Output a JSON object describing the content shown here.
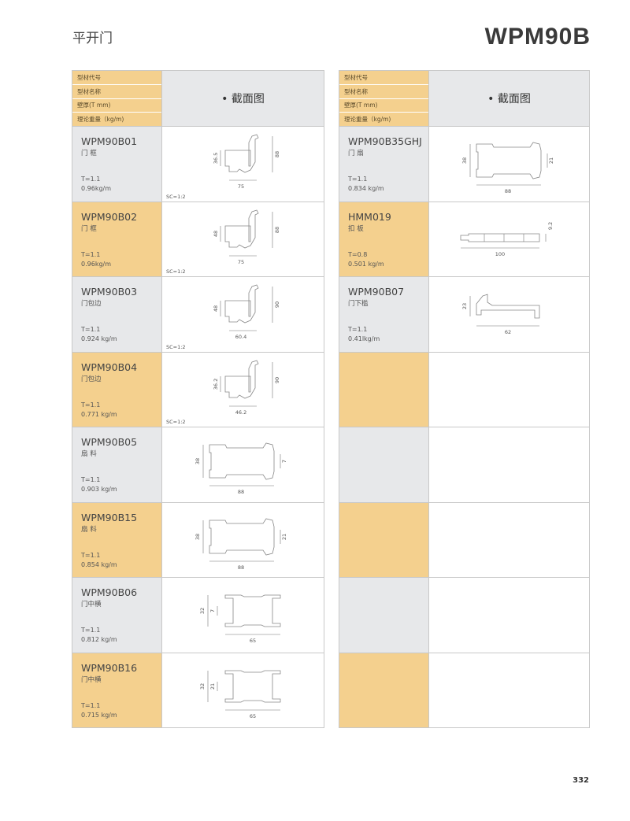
{
  "page": {
    "category": "平开门",
    "series_code": "WPM90B",
    "page_number": "332"
  },
  "header": {
    "labels": [
      "型材代号",
      "型材名称",
      "壁厚(T mm)",
      "理论重量（kg/m)"
    ],
    "section_title": "• 截面图"
  },
  "colors": {
    "gold": "#f4d08e",
    "gray": "#e7e8ea",
    "border": "#c8c8c8"
  },
  "left": [
    {
      "code": "WPM90B01",
      "name": "门 框",
      "thickness": "T=1.1",
      "weight": "0.96kg/m",
      "scale": "SC=1:2",
      "shape": "frame",
      "dims": {
        "left": "36.5",
        "right": "88",
        "bottom": "75"
      },
      "bg": "gray"
    },
    {
      "code": "WPM90B02",
      "name": "门 框",
      "thickness": "T=1.1",
      "weight": "0.96kg/m",
      "scale": "SC=1:2",
      "shape": "frame",
      "dims": {
        "left": "48",
        "right": "88",
        "bottom": "75"
      },
      "bg": "gold"
    },
    {
      "code": "WPM90B03",
      "name": "门包边",
      "thickness": "T=1.1",
      "weight": "0.924 kg/m",
      "scale": "SC=1:2",
      "shape": "frame",
      "dims": {
        "left": "48",
        "right": "90",
        "bottom": "60.4"
      },
      "bg": "gray"
    },
    {
      "code": "WPM90B04",
      "name": "门包边",
      "thickness": "T=1.1",
      "weight": "0.771 kg/m",
      "scale": "SC=1:2",
      "shape": "frame",
      "dims": {
        "left": "36.2",
        "right": "90",
        "bottom": "46.2"
      },
      "bg": "gold"
    },
    {
      "code": "WPM90B05",
      "name": "扇 料",
      "thickness": "T=1.1",
      "weight": "0.903 kg/m",
      "shape": "sash",
      "dims": {
        "left": "38",
        "right": "7",
        "bottom": "88"
      },
      "bg": "gray"
    },
    {
      "code": "WPM90B15",
      "name": "扇 料",
      "thickness": "T=1.1",
      "weight": "0.854 kg/m",
      "shape": "sash",
      "dims": {
        "left": "38",
        "right": "21",
        "bottom": "88"
      },
      "bg": "gold"
    },
    {
      "code": "WPM90B06",
      "name": "门中横",
      "thickness": "T=1.1",
      "weight": "0.812 kg/m",
      "shape": "mullion",
      "dims": {
        "left": "32",
        "inner": "7",
        "bottom": "65"
      },
      "bg": "gray"
    },
    {
      "code": "WPM90B16",
      "name": "门中横",
      "thickness": "T=1.1",
      "weight": "0.715 kg/m",
      "shape": "mullion",
      "dims": {
        "left": "32",
        "inner": "21",
        "bottom": "65"
      },
      "bg": "gold"
    }
  ],
  "right": [
    {
      "code": "WPM90B35GHJ",
      "name": "门 扇",
      "thickness": "T=1.1",
      "weight": "0.834 kg/m",
      "shape": "sash",
      "dims": {
        "left": "38",
        "right": "21",
        "bottom": "88"
      },
      "bg": "gray"
    },
    {
      "code": "HMM019",
      "name": "扣 板",
      "thickness": "T=0.8",
      "weight": "0.501 kg/m",
      "shape": "flat",
      "dims": {
        "right": "9.2",
        "bottom": "100"
      },
      "bg": "gold"
    },
    {
      "code": "WPM90B07",
      "name": "门下槛",
      "thickness": "T=1.1",
      "weight": "0.41lkg/m",
      "shape": "sill",
      "dims": {
        "left": "23",
        "bottom": "62"
      },
      "bg": "gray"
    },
    {
      "bg": "gold"
    },
    {
      "bg": "gray"
    },
    {
      "bg": "gold"
    },
    {
      "bg": "gray"
    },
    {
      "bg": "gold"
    }
  ]
}
